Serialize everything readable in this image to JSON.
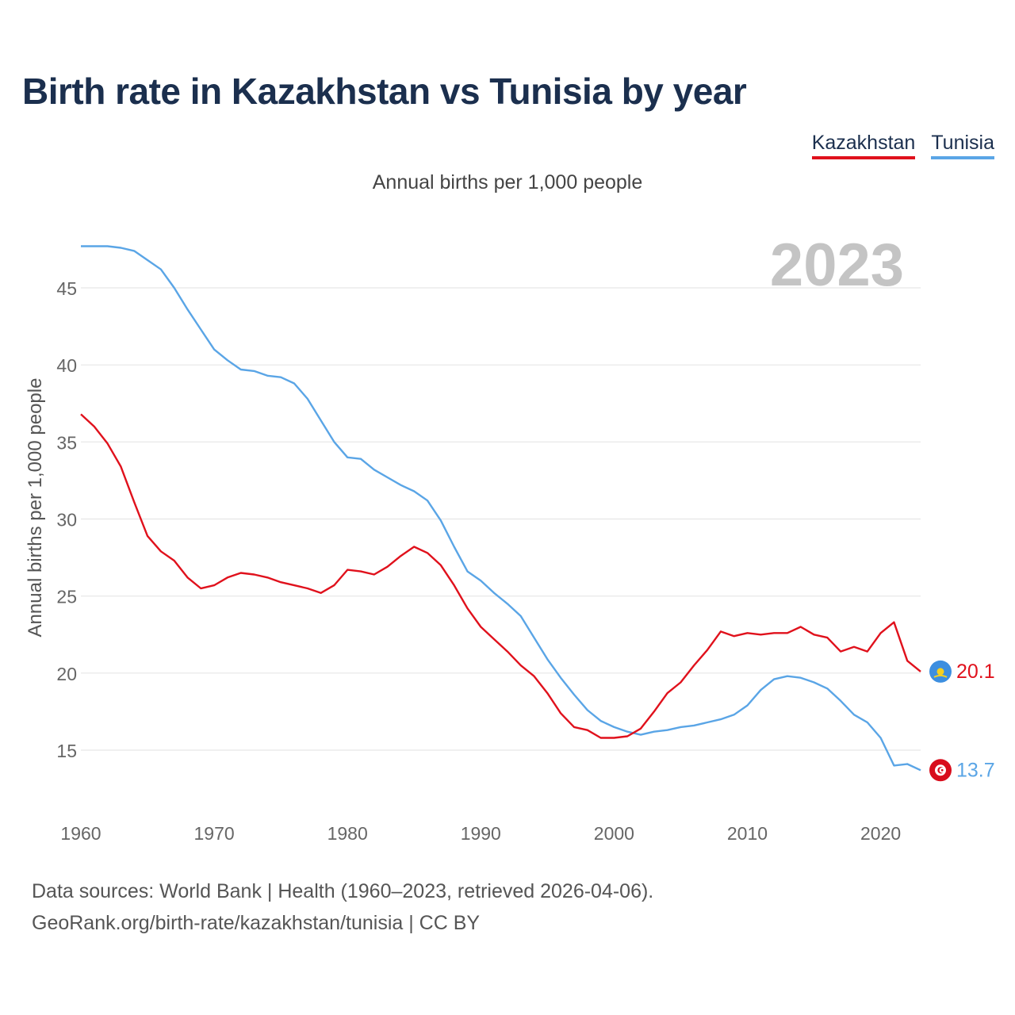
{
  "title": "Birth rate in Kazakhstan vs Tunisia by year",
  "legend": {
    "kazakhstan": "Kazakhstan",
    "tunisia": "Tunisia"
  },
  "subtitle": "Annual births per 1,000 people",
  "year_watermark": "2023",
  "source": {
    "line1": "Data sources: World Bank | Health (1960–2023, retrieved 2026-04-06).",
    "line2": "GeoRank.org/birth-rate/kazakhstan/tunisia | CC BY"
  },
  "colors": {
    "kazakhstan": "#e0111c",
    "tunisia": "#5aa5e6",
    "grid": "#e6e6e6",
    "axis_text": "#666666"
  },
  "chart_data": {
    "type": "line",
    "title": "Birth rate in Kazakhstan vs Tunisia by year",
    "xlabel": "",
    "ylabel": "Annual births per 1,000 people",
    "xlim": [
      1960,
      2023
    ],
    "ylim": [
      12,
      48
    ],
    "x_ticks": [
      1960,
      1970,
      1980,
      1990,
      2000,
      2010,
      2020
    ],
    "y_ticks": [
      15,
      20,
      25,
      30,
      35,
      40,
      45
    ],
    "x": [
      1960,
      1961,
      1962,
      1963,
      1964,
      1965,
      1966,
      1967,
      1968,
      1969,
      1970,
      1971,
      1972,
      1973,
      1974,
      1975,
      1976,
      1977,
      1978,
      1979,
      1980,
      1981,
      1982,
      1983,
      1984,
      1985,
      1986,
      1987,
      1988,
      1989,
      1990,
      1991,
      1992,
      1993,
      1994,
      1995,
      1996,
      1997,
      1998,
      1999,
      2000,
      2001,
      2002,
      2003,
      2004,
      2005,
      2006,
      2007,
      2008,
      2009,
      2010,
      2011,
      2012,
      2013,
      2014,
      2015,
      2016,
      2017,
      2018,
      2019,
      2020,
      2021,
      2022,
      2023
    ],
    "series": [
      {
        "name": "Kazakhstan",
        "end_label": "20.1",
        "values": [
          36.8,
          36.0,
          34.9,
          33.4,
          31.1,
          28.9,
          27.9,
          27.3,
          26.2,
          25.5,
          25.7,
          26.2,
          26.5,
          26.4,
          26.2,
          25.9,
          25.7,
          25.5,
          25.2,
          25.7,
          26.7,
          26.6,
          26.4,
          26.9,
          27.6,
          28.2,
          27.8,
          27.0,
          25.7,
          24.2,
          23.0,
          22.2,
          21.4,
          20.5,
          19.8,
          18.7,
          17.4,
          16.5,
          16.3,
          15.8,
          15.8,
          15.9,
          16.4,
          17.5,
          18.7,
          19.4,
          20.5,
          21.5,
          22.7,
          22.4,
          22.6,
          22.5,
          22.6,
          22.6,
          23.0,
          22.5,
          22.3,
          21.4,
          21.7,
          21.4,
          22.6,
          23.3,
          20.8,
          20.1
        ]
      },
      {
        "name": "Tunisia",
        "end_label": "13.7",
        "values": [
          47.7,
          47.7,
          47.7,
          47.6,
          47.4,
          46.8,
          46.2,
          45.0,
          43.6,
          42.3,
          41.0,
          40.3,
          39.7,
          39.6,
          39.3,
          39.2,
          38.8,
          37.8,
          36.4,
          35.0,
          34.0,
          33.9,
          33.2,
          32.7,
          32.2,
          31.8,
          31.2,
          29.9,
          28.2,
          26.6,
          26.0,
          25.2,
          24.5,
          23.7,
          22.3,
          20.9,
          19.7,
          18.6,
          17.6,
          16.9,
          16.5,
          16.2,
          16.0,
          16.2,
          16.3,
          16.5,
          16.6,
          16.8,
          17.0,
          17.3,
          17.9,
          18.9,
          19.6,
          19.8,
          19.7,
          19.4,
          19.0,
          18.2,
          17.3,
          16.8,
          15.8,
          14.0,
          14.1,
          13.7
        ]
      }
    ]
  }
}
